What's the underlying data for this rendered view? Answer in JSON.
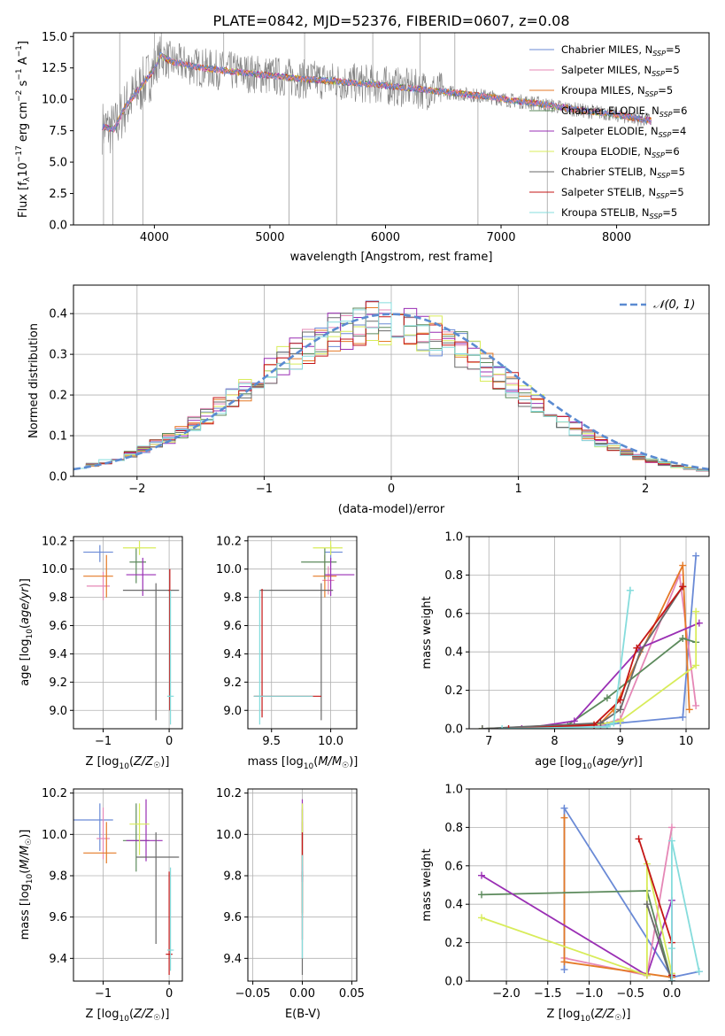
{
  "figure_title": "PLATE=0842, MJD=52376, FIBERID=0607, z=0.08",
  "chart_data": [
    {
      "id": "spectrum",
      "type": "line",
      "xlabel": "wavelength [Angstrom, rest frame]",
      "ylabel": "Flux [f_λ 10^-17 erg cm^-2 s^-1 A^-1]",
      "xlim": [
        3300,
        8800
      ],
      "ylim": [
        0,
        15.3
      ],
      "xticks": [
        4000,
        5000,
        6000,
        7000,
        8000
      ],
      "yticks": [
        0.0,
        2.5,
        5.0,
        7.5,
        10.0,
        12.5,
        15.0
      ],
      "legend_position": "top-right",
      "legend": [
        "Chabrier MILES, N_SSP=5",
        "Salpeter MILES, N_SSP=5",
        "Kroupa MILES, N_SSP=5",
        "Chabrier ELODIE, N_SSP=6",
        "Salpeter ELODIE, N_SSP=4",
        "Kroupa ELODIE, N_SSP=6",
        "Chabrier STELIB, N_SSP=5",
        "Salpeter STELIB, N_SSP=5",
        "Kroupa STELIB, N_SSP=5"
      ],
      "model_continuum": {
        "x": [
          3550,
          3650,
          3750,
          3850,
          3950,
          4000,
          4050,
          4150,
          4250,
          4350,
          4500,
          4700,
          4900,
          5100,
          5300,
          5500,
          5700,
          5900,
          6100,
          6300,
          6500,
          6700,
          6900,
          7100,
          7300,
          7500,
          7700,
          7900,
          8100,
          8300
        ],
        "y": [
          7.8,
          7.6,
          9.4,
          10.6,
          11.8,
          12.4,
          13.5,
          13.0,
          12.8,
          12.6,
          12.4,
          12.2,
          12.0,
          11.8,
          11.6,
          11.5,
          11.3,
          11.2,
          11.0,
          10.8,
          10.6,
          10.4,
          10.2,
          9.9,
          9.7,
          9.4,
          9.1,
          8.9,
          8.6,
          8.3
        ]
      }
    },
    {
      "id": "residuals",
      "type": "histogram",
      "xlabel": "(data-model)/error",
      "ylabel": "Normed distribution",
      "xlim": [
        -2.5,
        2.5
      ],
      "ylim": [
        0,
        0.47
      ],
      "xticks": [
        -2,
        -1,
        0,
        1,
        2
      ],
      "yticks": [
        0.0,
        0.1,
        0.2,
        0.3,
        0.4
      ],
      "legend": "𝒩(0, 1)",
      "legend_position": "top-right",
      "bins": 50
    },
    {
      "id": "age-vs-Z",
      "type": "errorbar",
      "xlabel": "Z [log10(Z/Z☉)]",
      "ylabel": "age  [log10(age/yr)]",
      "xlim": [
        -1.45,
        0.2
      ],
      "ylim": [
        8.87,
        10.23
      ],
      "xticks": [
        -1,
        0
      ],
      "yticks": [
        9.0,
        9.2,
        9.4,
        9.6,
        9.8,
        10.0,
        10.2
      ],
      "points": [
        {
          "x": -1.05,
          "y": 10.12,
          "xerr": [
            0.25,
            0.2
          ],
          "yerr": [
            0.07,
            0.05
          ]
        },
        {
          "x": -1.0,
          "y": 9.88,
          "xerr": [
            0.25,
            0.1
          ],
          "yerr": [
            0.1,
            0.1
          ]
        },
        {
          "x": -0.95,
          "y": 9.95,
          "xerr": [
            0.35,
            0.1
          ],
          "yerr": [
            0.15,
            0.15
          ]
        },
        {
          "x": -0.5,
          "y": 10.05,
          "xerr": [
            0.1,
            0.15
          ],
          "yerr": [
            0.15,
            0.1
          ]
        },
        {
          "x": -0.4,
          "y": 9.96,
          "xerr": [
            0.25,
            0.2
          ],
          "yerr": [
            0.15,
            0.12
          ]
        },
        {
          "x": -0.45,
          "y": 10.15,
          "xerr": [
            0.25,
            0.25
          ],
          "yerr": [
            0.05,
            0.05
          ]
        },
        {
          "x": -0.2,
          "y": 9.85,
          "xerr": [
            0.5,
            0.35
          ],
          "yerr": [
            0.92,
            0.05
          ]
        },
        {
          "x": 0.01,
          "y": 9.85,
          "xerr": [
            0.02,
            0.02
          ],
          "yerr": [
            0.85,
            0.15
          ]
        },
        {
          "x": 0.02,
          "y": 9.1,
          "xerr": [
            0.05,
            0.05
          ],
          "yerr": [
            0.2,
            0.75
          ]
        }
      ]
    },
    {
      "id": "age-vs-mass",
      "type": "errorbar",
      "xlabel": "mass [log10(M/M☉)]",
      "ylabel": "",
      "xlim": [
        9.3,
        10.22
      ],
      "ylim": [
        8.87,
        10.23
      ],
      "xticks": [
        9.5,
        10.0
      ],
      "yticks": [
        9.0,
        9.2,
        9.4,
        9.6,
        9.8,
        10.0,
        10.2
      ],
      "points": [
        {
          "x": 10.0,
          "y": 10.12,
          "xerr": [
            0.05,
            0.1
          ],
          "yerr": [
            0.07,
            0.05
          ]
        },
        {
          "x": 9.98,
          "y": 9.92,
          "xerr": [
            0.05,
            0.05
          ],
          "yerr": [
            0.1,
            0.1
          ]
        },
        {
          "x": 9.95,
          "y": 9.95,
          "xerr": [
            0.1,
            0.1
          ],
          "yerr": [
            0.15,
            0.15
          ]
        },
        {
          "x": 9.95,
          "y": 10.05,
          "xerr": [
            0.2,
            0.1
          ],
          "yerr": [
            0.12,
            0.1
          ]
        },
        {
          "x": 10.0,
          "y": 9.96,
          "xerr": [
            0.05,
            0.2
          ],
          "yerr": [
            0.15,
            0.12
          ]
        },
        {
          "x": 10.0,
          "y": 10.15,
          "xerr": [
            0.15,
            0.1
          ],
          "yerr": [
            0.05,
            0.05
          ]
        },
        {
          "x": 9.92,
          "y": 9.85,
          "xerr": [
            0.52,
            0.1
          ],
          "yerr": [
            0.92,
            0.05
          ]
        },
        {
          "x": 9.42,
          "y": 9.1,
          "xerr": [
            0.07,
            0.5
          ],
          "yerr": [
            0.15,
            0.76
          ]
        },
        {
          "x": 9.4,
          "y": 9.1,
          "xerr": [
            0.05,
            0.45
          ],
          "yerr": [
            0.2,
            0.75
          ]
        }
      ]
    },
    {
      "id": "weight-vs-age",
      "type": "line",
      "xlabel": "age  [log10(age/yr)]",
      "ylabel": "mass weight",
      "xlim": [
        6.7,
        10.35
      ],
      "ylim": [
        0,
        1.0
      ],
      "xticks": [
        7,
        8,
        9,
        10
      ],
      "yticks": [
        0.0,
        0.2,
        0.4,
        0.6,
        0.8,
        1.0
      ],
      "series": [
        {
          "x": [
            6.9,
            8.8,
            9.0,
            9.95,
            10.15
          ],
          "y": [
            0.0,
            0.02,
            0.03,
            0.06,
            0.9
          ]
        },
        {
          "x": [
            6.9,
            8.7,
            9.0,
            9.9,
            10.15
          ],
          "y": [
            0.0,
            0.02,
            0.05,
            0.8,
            0.12
          ]
        },
        {
          "x": [
            7.5,
            8.7,
            8.9,
            9.95,
            10.05
          ],
          "y": [
            0.0,
            0.03,
            0.1,
            0.85,
            0.1
          ]
        },
        {
          "x": [
            6.9,
            8.2,
            8.8,
            9.95,
            10.15
          ],
          "y": [
            0.0,
            0.02,
            0.16,
            0.47,
            0.45
          ]
        },
        {
          "x": [
            7.5,
            8.3,
            9.3,
            10.2
          ],
          "y": [
            0.0,
            0.04,
            0.42,
            0.55
          ]
        },
        {
          "x": [
            6.9,
            8.6,
            9.0,
            10.15,
            10.15
          ],
          "y": [
            0.0,
            0.02,
            0.04,
            0.33,
            0.61
          ]
        },
        {
          "x": [
            6.9,
            8.7,
            9.0,
            9.3,
            9.95
          ],
          "y": [
            0.0,
            0.03,
            0.1,
            0.4,
            0.74
          ]
        },
        {
          "x": [
            7.3,
            8.6,
            9.0,
            9.25,
            9.95
          ],
          "y": [
            0.0,
            0.02,
            0.15,
            0.42,
            0.74
          ]
        },
        {
          "x": [
            7.2,
            8.8,
            8.9,
            9.15,
            9.15
          ],
          "y": [
            0.0,
            0.01,
            0.03,
            0.72,
            0.72
          ]
        }
      ]
    },
    {
      "id": "mass-vs-Z",
      "type": "errorbar",
      "xlabel": "Z [log10(Z/Z☉)]",
      "ylabel": "mass [log10(M/M☉)]",
      "xlim": [
        -1.45,
        0.2
      ],
      "ylim": [
        9.29,
        10.22
      ],
      "xticks": [
        -1,
        0
      ],
      "yticks": [
        9.4,
        9.6,
        9.8,
        10.0,
        10.2
      ],
      "points": [
        {
          "x": -1.05,
          "y": 10.07,
          "xerr": [
            0.4,
            0.2
          ],
          "yerr": [
            0.15,
            0.08
          ]
        },
        {
          "x": -1.0,
          "y": 9.98,
          "xerr": [
            0.1,
            0.1
          ],
          "yerr": [
            0.1,
            0.15
          ]
        },
        {
          "x": -0.95,
          "y": 9.91,
          "xerr": [
            0.35,
            0.15
          ],
          "yerr": [
            0.05,
            0.15
          ]
        },
        {
          "x": -0.5,
          "y": 9.97,
          "xerr": [
            0.2,
            0.2
          ],
          "yerr": [
            0.15,
            0.18
          ]
        },
        {
          "x": -0.35,
          "y": 9.97,
          "xerr": [
            0.3,
            0.25
          ],
          "yerr": [
            0.1,
            0.2
          ]
        },
        {
          "x": -0.45,
          "y": 10.05,
          "xerr": [
            0.15,
            0.15
          ],
          "yerr": [
            0.15,
            0.1
          ]
        },
        {
          "x": -0.2,
          "y": 9.89,
          "xerr": [
            0.3,
            0.35
          ],
          "yerr": [
            0.42,
            0.12
          ]
        },
        {
          "x": 0.0,
          "y": 9.42,
          "xerr": [
            0.05,
            0.05
          ],
          "yerr": [
            0.1,
            0.4
          ]
        },
        {
          "x": 0.02,
          "y": 9.44,
          "xerr": [
            0.05,
            0.05
          ],
          "yerr": [
            0.1,
            0.4
          ]
        }
      ]
    },
    {
      "id": "mass-vs-EBV",
      "type": "errorbar",
      "xlabel": "E(B-V)",
      "ylabel": "",
      "xlim": [
        -0.055,
        0.055
      ],
      "ylim": [
        9.29,
        10.22
      ],
      "xticks": [
        -0.05,
        0.0,
        0.05
      ],
      "xticklabels": [
        "−0.05",
        "0.00",
        "0.05"
      ],
      "yticks": [
        9.4,
        9.6,
        9.8,
        10.0,
        10.2
      ],
      "points": [
        {
          "x": 0.0,
          "y": 10.07,
          "yerr": [
            0.1,
            0.08
          ]
        },
        {
          "x": 0.0,
          "y": 9.98,
          "yerr": [
            0.2,
            0.15
          ]
        },
        {
          "x": 0.0,
          "y": 9.91,
          "yerr": [
            0.3,
            0.15
          ]
        },
        {
          "x": 0.0,
          "y": 9.97,
          "yerr": [
            0.35,
            0.15
          ]
        },
        {
          "x": 0.0,
          "y": 9.97,
          "yerr": [
            0.2,
            0.2
          ]
        },
        {
          "x": 0.0,
          "y": 10.05,
          "yerr": [
            0.2,
            0.1
          ]
        },
        {
          "x": 0.0,
          "y": 9.72,
          "yerr": [
            0.4,
            0.1
          ]
        },
        {
          "x": 0.0,
          "y": 9.89,
          "yerr": [
            0.4,
            0.12
          ]
        },
        {
          "x": 0.0,
          "y": 9.7,
          "yerr": [
            0.3,
            0.2
          ]
        }
      ]
    },
    {
      "id": "weight-vs-Z",
      "type": "line",
      "xlabel": "Z [log10(Z/Z☉)]",
      "ylabel": "mass weight",
      "xlim": [
        -2.45,
        0.45
      ],
      "ylim": [
        0,
        1.0
      ],
      "xticks": [
        -2.0,
        -1.5,
        -1.0,
        -0.5,
        0.0
      ],
      "yticks": [
        0.0,
        0.2,
        0.4,
        0.6,
        0.8,
        1.0
      ],
      "series": [
        {
          "x": [
            -1.3,
            -1.3,
            0.0,
            0.33
          ],
          "y": [
            0.06,
            0.9,
            0.02,
            0.05
          ]
        },
        {
          "x": [
            -1.3,
            -0.3,
            0.0
          ],
          "y": [
            0.12,
            0.03,
            0.8
          ]
        },
        {
          "x": [
            -1.3,
            -1.3,
            0.0
          ],
          "y": [
            0.85,
            0.1,
            0.02
          ]
        },
        {
          "x": [
            -2.3,
            -0.3,
            0.0
          ],
          "y": [
            0.45,
            0.47,
            0.0
          ]
        },
        {
          "x": [
            -2.3,
            -0.3,
            0.0,
            0.0
          ],
          "y": [
            0.55,
            0.03,
            0.42,
            0.0
          ]
        },
        {
          "x": [
            -2.3,
            -0.3,
            -0.3,
            0.0
          ],
          "y": [
            0.33,
            0.03,
            0.61,
            0.04
          ]
        },
        {
          "x": [
            -0.3,
            0.0
          ],
          "y": [
            0.4,
            0.0
          ]
        },
        {
          "x": [
            -0.4,
            0.0,
            0.0
          ],
          "y": [
            0.74,
            0.2,
            0.03
          ]
        },
        {
          "x": [
            0.0,
            0.0,
            0.0,
            0.33
          ],
          "y": [
            0.0,
            0.17,
            0.73,
            0.05
          ]
        }
      ]
    }
  ],
  "series_colors": [
    "#6a8ad6",
    "#e587b6",
    "#e57a27",
    "#5c8a5c",
    "#9a2fb4",
    "#d8ec5a",
    "#6a6a6a",
    "#c41616",
    "#85dcdc"
  ]
}
